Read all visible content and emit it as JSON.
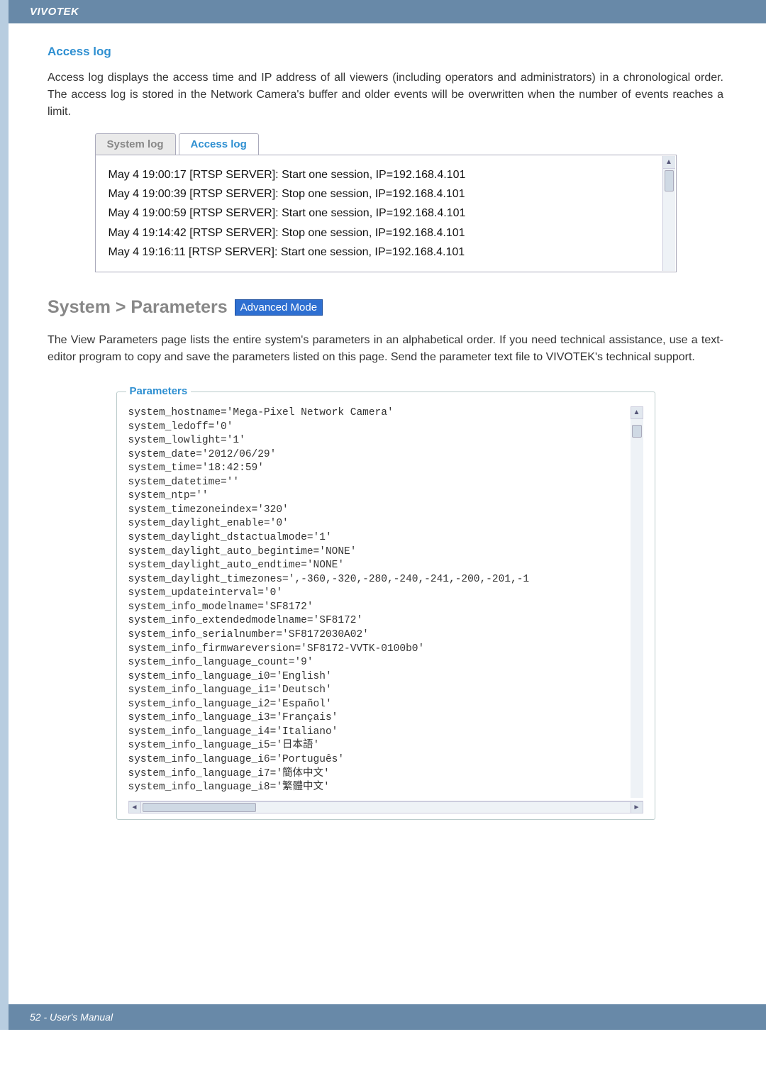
{
  "header": {
    "brand": "VIVOTEK"
  },
  "access_log_section": {
    "title": "Access log",
    "description": "Access log displays the access time and IP address of all viewers (including operators and administrators) in a chronological order. The access log is stored in the Network Camera's buffer and older events will be overwritten when the number of events reaches a limit.",
    "tabs": {
      "system_log": "System log",
      "access_log": "Access log"
    },
    "entries": [
      "May 4 19:00:17 [RTSP SERVER]: Start one session, IP=192.168.4.101",
      "May 4 19:00:39 [RTSP SERVER]: Stop one session, IP=192.168.4.101",
      "May 4 19:00:59 [RTSP SERVER]: Start one session, IP=192.168.4.101",
      "May 4 19:14:42 [RTSP SERVER]: Stop one session, IP=192.168.4.101",
      "May 4 19:16:11 [RTSP SERVER]: Start one session, IP=192.168.4.101"
    ]
  },
  "parameters_section": {
    "heading": "System > Parameters",
    "badge": "Advanced Mode",
    "description": "The View Parameters page lists the entire system's parameters in an alphabetical order. If you need technical assistance, use a text-editor program to copy and save the parameters listed on this page. Send the parameter text file to VIVOTEK's technical support.",
    "frame_label": "Parameters",
    "lines": [
      "system_hostname='Mega-Pixel Network Camera'",
      "system_ledoff='0'",
      "system_lowlight='1'",
      "system_date='2012/06/29'",
      "system_time='18:42:59'",
      "system_datetime=''",
      "system_ntp=''",
      "system_timezoneindex='320'",
      "system_daylight_enable='0'",
      "system_daylight_dstactualmode='1'",
      "system_daylight_auto_begintime='NONE'",
      "system_daylight_auto_endtime='NONE'",
      "system_daylight_timezones=',-360,-320,-280,-240,-241,-200,-201,-1",
      "system_updateinterval='0'",
      "system_info_modelname='SF8172'",
      "system_info_extendedmodelname='SF8172'",
      "system_info_serialnumber='SF8172030A02'",
      "system_info_firmwareversion='SF8172-VVTK-0100b0'",
      "system_info_language_count='9'",
      "system_info_language_i0='English'",
      "system_info_language_i1='Deutsch'",
      "system_info_language_i2='Español'",
      "system_info_language_i3='Français'",
      "system_info_language_i4='Italiano'",
      "system_info_language_i5='日本語'",
      "system_info_language_i6='Português'",
      "system_info_language_i7='簡体中文'",
      "system_info_language_i8='繁體中文'"
    ]
  },
  "footer": {
    "text": "52 - User's Manual"
  },
  "colors": {
    "header_bg": "#6889a8",
    "left_stripe": "#b8cde0",
    "link_blue": "#2e8fd1",
    "badge_bg": "#2e6fd1",
    "grey_heading": "#888888"
  }
}
